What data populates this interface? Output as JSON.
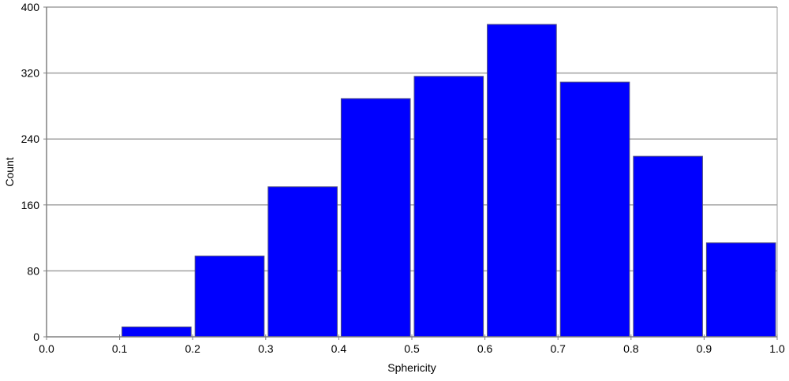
{
  "chart_data": {
    "type": "bar",
    "title": "",
    "xlabel": "Sphericity",
    "ylabel": "Count",
    "xlim": [
      0.0,
      1.0
    ],
    "ylim": [
      0,
      400
    ],
    "grid": true,
    "legend": "none",
    "bar_color": "#0000ff",
    "x_ticks": [
      "0.0",
      "0.1",
      "0.2",
      "0.3",
      "0.4",
      "0.5",
      "0.6",
      "0.7",
      "0.8",
      "0.9",
      "1.0"
    ],
    "y_ticks": [
      "0",
      "80",
      "160",
      "240",
      "320",
      "400"
    ],
    "bins": [
      [
        0.1,
        0.2
      ],
      [
        0.2,
        0.3
      ],
      [
        0.3,
        0.4
      ],
      [
        0.4,
        0.5
      ],
      [
        0.5,
        0.6
      ],
      [
        0.6,
        0.7
      ],
      [
        0.7,
        0.8
      ],
      [
        0.8,
        0.9
      ],
      [
        0.9,
        1.0
      ]
    ],
    "values": [
      12,
      98,
      182,
      289,
      316,
      379,
      309,
      219,
      114
    ]
  }
}
